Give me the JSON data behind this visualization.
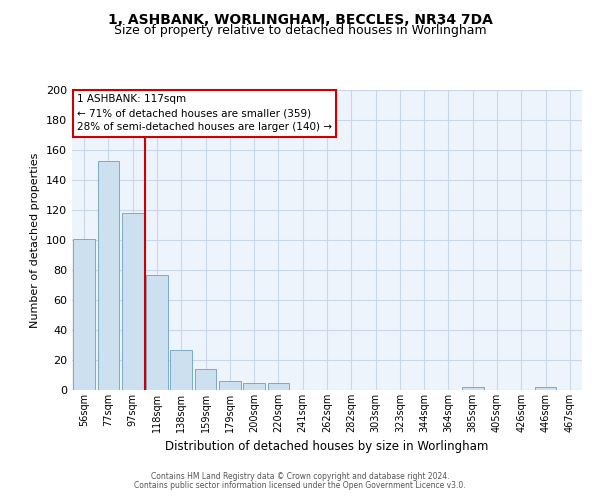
{
  "title": "1, ASHBANK, WORLINGHAM, BECCLES, NR34 7DA",
  "subtitle": "Size of property relative to detached houses in Worlingham",
  "xlabel": "Distribution of detached houses by size in Worlingham",
  "ylabel": "Number of detached properties",
  "bar_labels": [
    "56sqm",
    "77sqm",
    "97sqm",
    "118sqm",
    "138sqm",
    "159sqm",
    "179sqm",
    "200sqm",
    "220sqm",
    "241sqm",
    "262sqm",
    "282sqm",
    "303sqm",
    "323sqm",
    "344sqm",
    "364sqm",
    "385sqm",
    "405sqm",
    "426sqm",
    "446sqm",
    "467sqm"
  ],
  "bar_values": [
    101,
    153,
    118,
    77,
    27,
    14,
    6,
    5,
    5,
    0,
    0,
    0,
    0,
    0,
    0,
    0,
    2,
    0,
    0,
    2,
    0
  ],
  "bar_color": "#cce0f0",
  "bar_edge_color": "#7aaac8",
  "ylim": [
    0,
    200
  ],
  "yticks": [
    0,
    20,
    40,
    60,
    80,
    100,
    120,
    140,
    160,
    180,
    200
  ],
  "vline_position": 2.5,
  "vline_color": "#cc0000",
  "annotation_title": "1 ASHBANK: 117sqm",
  "annotation_line1": "← 71% of detached houses are smaller (359)",
  "annotation_line2": "28% of semi-detached houses are larger (140) →",
  "annotation_box_color": "#ffffff",
  "annotation_box_edge": "#cc0000",
  "footer1": "Contains HM Land Registry data © Crown copyright and database right 2024.",
  "footer2": "Contains public sector information licensed under the Open Government Licence v3.0.",
  "bg_color": "#ffffff",
  "plot_bg_color": "#eef4fb",
  "grid_color": "#c8d8e8",
  "title_fontsize": 10,
  "subtitle_fontsize": 9
}
